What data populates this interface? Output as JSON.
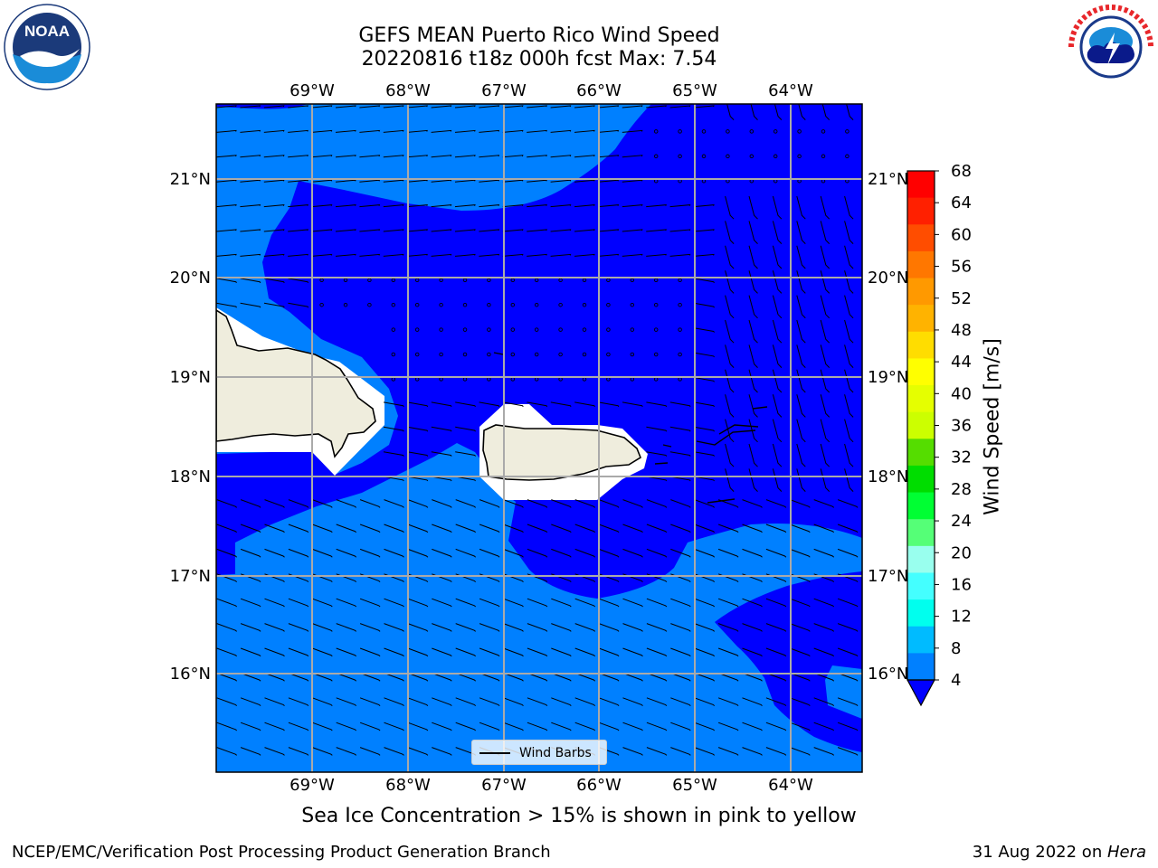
{
  "header": {
    "title_line1": "GEFS MEAN Puerto Rico Wind Speed",
    "title_line2": "20220816 t18z 000h fcst   Max: 7.54"
  },
  "logos": {
    "left": {
      "icon": "noaa-logo",
      "text": "NOAA"
    },
    "right": {
      "icon": "national-weather-service-logo"
    }
  },
  "map": {
    "longitude_labels": [
      "69°W",
      "68°W",
      "67°W",
      "66°W",
      "65°W",
      "64°W"
    ],
    "latitude_labels": [
      "21°N",
      "20°N",
      "19°N",
      "18°N",
      "17°N",
      "16°N"
    ],
    "legend_label": "Wind Barbs",
    "land_color": "#efeddd",
    "fill_colors": {
      "below_4": "#0000ff",
      "4_to_8": "#0080ff"
    }
  },
  "colorbar": {
    "label": "Wind Speed [m/s]",
    "ticks": [
      "68",
      "64",
      "60",
      "56",
      "52",
      "48",
      "44",
      "40",
      "36",
      "32",
      "28",
      "24",
      "20",
      "16",
      "12",
      "8",
      "4"
    ],
    "colors": [
      "#ff0000",
      "#ff2000",
      "#ff4d00",
      "#ff7700",
      "#ff9900",
      "#ffb300",
      "#ffdd00",
      "#ffff00",
      "#e5ff00",
      "#ccff00",
      "#55dd00",
      "#00dd00",
      "#00ff33",
      "#55ff77",
      "#99ffee",
      "#44ffff",
      "#00ffee",
      "#00bbff",
      "#0080ff",
      "#0000ff"
    ]
  },
  "caption": "Sea Ice Concentration > 15% is shown in pink to yellow",
  "footer": {
    "left": "NCEP/EMC/Verification Post Processing Product Generation Branch",
    "date": "31 Aug 2022 on ",
    "host": "Hera"
  }
}
